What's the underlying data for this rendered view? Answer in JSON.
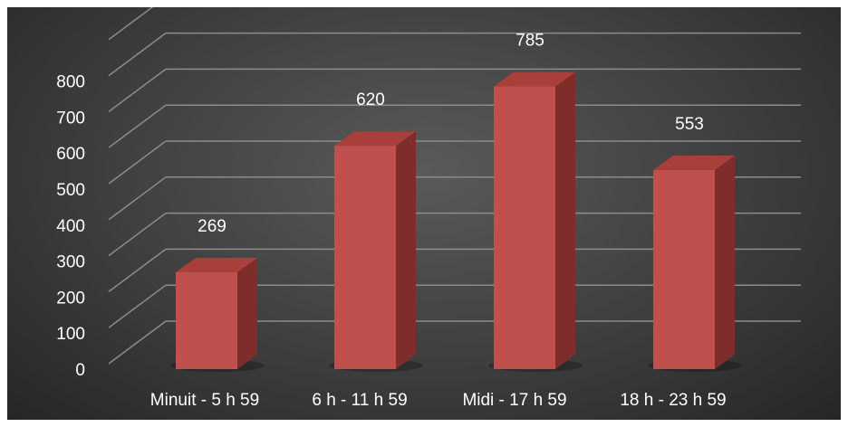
{
  "chart_data": {
    "type": "bar",
    "categories": [
      "Minuit - 5 h 59",
      "6 h - 11 h 59",
      "Midi - 17 h 59",
      "18 h - 23 h 59"
    ],
    "values": [
      269,
      620,
      785,
      553
    ],
    "yticks": [
      0,
      100,
      200,
      300,
      400,
      500,
      600,
      700,
      800
    ],
    "ylim": [
      0,
      900
    ],
    "grid": true,
    "three_d": true,
    "bar_color": "#c0504d",
    "background_color": "#404040",
    "text_color": "#ffffff"
  }
}
